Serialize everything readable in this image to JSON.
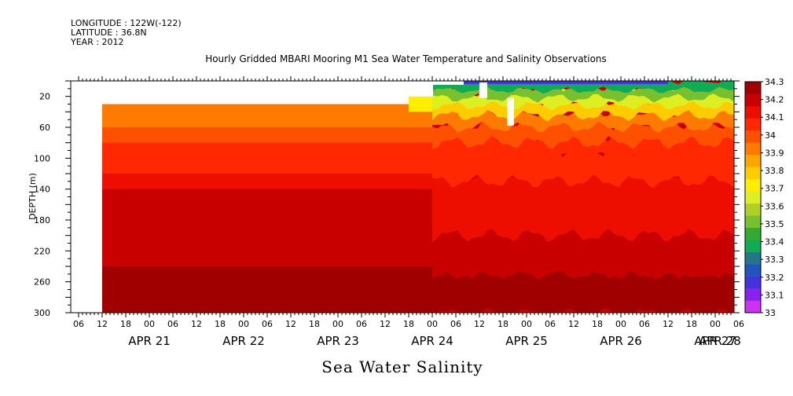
{
  "header": {
    "longitude": "LONGITUDE : 122W(-122)",
    "latitude": "LATITUDE : 36.8N",
    "year": "YEAR : 2012"
  },
  "title": "Hourly Gridded MBARI Mooring M1 Sea Water Temperature and Salinity Observations",
  "variable_label": "Sea Water Salinity",
  "chart_data": {
    "type": "heatmap",
    "title": "Hourly Gridded MBARI Mooring M1 Sea Water Temperature and Salinity Observations",
    "xlabel": "",
    "ylabel": "DEPTH (m)",
    "x_start_hour_label": "06",
    "x_end": "APR 28 06",
    "xlim_hours": [
      0,
      168
    ],
    "ylim": [
      300,
      0
    ],
    "y_ticks": [
      20,
      60,
      100,
      140,
      180,
      220,
      260,
      300
    ],
    "x_hour_ticks": [
      "06",
      "12",
      "18",
      "00",
      "06",
      "12",
      "18",
      "00",
      "06",
      "12",
      "18",
      "00",
      "06",
      "12",
      "18",
      "00",
      "06",
      "12",
      "18",
      "00",
      "06",
      "12",
      "18",
      "00",
      "06",
      "12",
      "18",
      "00",
      "06"
    ],
    "x_day_labels": [
      "APR 21",
      "APR 22",
      "APR 23",
      "APR 24",
      "APR 25",
      "APR 26",
      "APR 27",
      "APR 28"
    ],
    "colorbar": {
      "levels": [
        33,
        33.1,
        33.2,
        33.3,
        33.4,
        33.5,
        33.6,
        33.7,
        33.8,
        33.9,
        34,
        34.1,
        34.2,
        34.3
      ],
      "tick_labels": [
        "33",
        "33.1",
        "33.2",
        "33.3",
        "33.4",
        "33.5",
        "33.6",
        "33.7",
        "33.8",
        "33.9",
        "34",
        "34.1",
        "34.2",
        "34.3"
      ],
      "colors": [
        "#cc33ee",
        "#8822ee",
        "#4433dd",
        "#2255bb",
        "#227788",
        "#11aa55",
        "#33aa33",
        "#77c030",
        "#b0d028",
        "#ddee22",
        "#ffee00",
        "#ffcc00",
        "#ffa500",
        "#ff7a00",
        "#ff5000",
        "#ff2800",
        "#ee0e00",
        "#c80000",
        "#a00000"
      ]
    },
    "profile_before_apr25": [
      {
        "depth_range": [
          30,
          40
        ],
        "salinity": 33.95
      },
      {
        "depth_range": [
          40,
          60
        ],
        "salinity": 33.95
      },
      {
        "depth_range": [
          60,
          80
        ],
        "salinity": 33.97
      },
      {
        "depth_range": [
          80,
          100
        ],
        "salinity": 34.03
      },
      {
        "depth_range": [
          100,
          120
        ],
        "salinity": 34.08
      },
      {
        "depth_range": [
          120,
          140
        ],
        "salinity": 34.13
      },
      {
        "depth_range": [
          140,
          200
        ],
        "salinity": 34.17
      },
      {
        "depth_range": [
          200,
          220
        ],
        "salinity": 34.17
      },
      {
        "depth_range": [
          220,
          240
        ],
        "salinity": 34.22
      },
      {
        "depth_range": [
          240,
          300
        ],
        "salinity": 34.27
      }
    ],
    "notes_surface_after_apr25": {
      "depth_range": [
        0,
        40
      ],
      "salinity_range": [
        33.1,
        33.9
      ]
    }
  }
}
